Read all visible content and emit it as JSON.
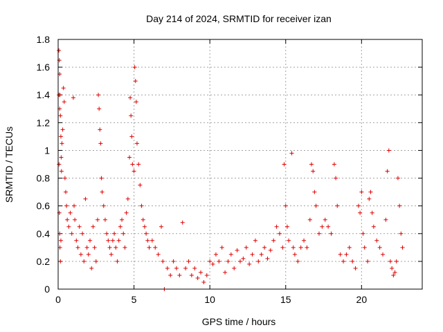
{
  "chart_data": {
    "type": "scatter",
    "title": "Day 214 of 2024, SRMTID for receiver izan",
    "xlabel": "GPS time / hours",
    "ylabel": "SRMTID / TECUs",
    "xlim": [
      0,
      24
    ],
    "ylim": [
      0,
      1.8
    ],
    "xticks": [
      0,
      5,
      10,
      15,
      20
    ],
    "xtick_labels": [
      "0",
      "5",
      "10",
      "15",
      "20"
    ],
    "yticks": [
      0,
      0.2,
      0.4,
      0.6,
      0.8,
      1.0,
      1.2,
      1.4,
      1.6,
      1.8
    ],
    "ytick_labels": [
      "0",
      "0.2",
      "0.4",
      "0.6",
      "0.8",
      "1",
      "1.2",
      "1.4",
      "1.6",
      "1.8"
    ],
    "grid": true,
    "marker": "+",
    "color": "#e00000",
    "series": [
      {
        "name": "SRMTID",
        "points": [
          [
            0.05,
            1.72
          ],
          [
            0.08,
            1.65
          ],
          [
            0.1,
            1.55
          ],
          [
            0.12,
            1.4
          ],
          [
            0.15,
            1.25
          ],
          [
            0.18,
            1.1
          ],
          [
            0.2,
            0.95
          ],
          [
            0.22,
            0.85
          ],
          [
            0.05,
            1.4
          ],
          [
            0.1,
            1.3
          ],
          [
            0.06,
            0.9
          ],
          [
            0.08,
            0.55
          ],
          [
            0.1,
            0.4
          ],
          [
            0.12,
            0.3
          ],
          [
            0.15,
            0.2
          ],
          [
            0.18,
            0.35
          ],
          [
            0.25,
            1.05
          ],
          [
            0.3,
            1.15
          ],
          [
            0.35,
            1.45
          ],
          [
            0.4,
            1.35
          ],
          [
            0.45,
            0.8
          ],
          [
            0.5,
            0.7
          ],
          [
            0.55,
            0.6
          ],
          [
            0.6,
            0.5
          ],
          [
            0.7,
            0.45
          ],
          [
            0.8,
            0.55
          ],
          [
            0.9,
            0.4
          ],
          [
            1.0,
            1.38
          ],
          [
            1.05,
            0.6
          ],
          [
            1.1,
            0.5
          ],
          [
            1.2,
            0.35
          ],
          [
            1.3,
            0.3
          ],
          [
            1.4,
            0.45
          ],
          [
            1.5,
            0.25
          ],
          [
            1.6,
            0.4
          ],
          [
            1.7,
            0.2
          ],
          [
            1.8,
            0.65
          ],
          [
            1.9,
            0.3
          ],
          [
            2.0,
            0.25
          ],
          [
            2.1,
            0.35
          ],
          [
            2.2,
            0.15
          ],
          [
            2.3,
            0.45
          ],
          [
            2.4,
            0.3
          ],
          [
            2.5,
            0.2
          ],
          [
            2.6,
            0.5
          ],
          [
            2.65,
            1.4
          ],
          [
            2.7,
            1.3
          ],
          [
            2.75,
            1.15
          ],
          [
            2.8,
            1.05
          ],
          [
            2.85,
            0.8
          ],
          [
            2.9,
            0.7
          ],
          [
            3.0,
            0.6
          ],
          [
            3.1,
            0.5
          ],
          [
            3.2,
            0.4
          ],
          [
            3.3,
            0.35
          ],
          [
            3.4,
            0.3
          ],
          [
            3.5,
            0.25
          ],
          [
            3.6,
            0.35
          ],
          [
            3.7,
            0.4
          ],
          [
            3.8,
            0.3
          ],
          [
            3.9,
            0.2
          ],
          [
            4.0,
            0.35
          ],
          [
            4.1,
            0.45
          ],
          [
            4.2,
            0.5
          ],
          [
            4.3,
            0.4
          ],
          [
            4.4,
            0.3
          ],
          [
            4.5,
            0.55
          ],
          [
            4.6,
            0.65
          ],
          [
            4.7,
            0.95
          ],
          [
            4.75,
            1.38
          ],
          [
            4.8,
            1.25
          ],
          [
            4.85,
            1.1
          ],
          [
            4.9,
            0.9
          ],
          [
            5.0,
            0.85
          ],
          [
            5.05,
            1.6
          ],
          [
            5.1,
            1.5
          ],
          [
            5.15,
            1.35
          ],
          [
            5.2,
            1.05
          ],
          [
            5.3,
            0.9
          ],
          [
            5.4,
            0.75
          ],
          [
            5.5,
            0.6
          ],
          [
            5.6,
            0.5
          ],
          [
            5.7,
            0.45
          ],
          [
            5.8,
            0.4
          ],
          [
            5.9,
            0.35
          ],
          [
            6.0,
            0.3
          ],
          [
            6.2,
            0.35
          ],
          [
            6.4,
            0.3
          ],
          [
            6.6,
            0.25
          ],
          [
            6.8,
            0.45
          ],
          [
            6.9,
            0.2
          ],
          [
            7.0,
            0.0
          ],
          [
            7.2,
            0.15
          ],
          [
            7.4,
            0.1
          ],
          [
            7.6,
            0.2
          ],
          [
            7.8,
            0.15
          ],
          [
            8.0,
            0.1
          ],
          [
            8.2,
            0.48
          ],
          [
            8.4,
            0.15
          ],
          [
            8.6,
            0.2
          ],
          [
            8.8,
            0.1
          ],
          [
            9.0,
            0.15
          ],
          [
            9.2,
            0.08
          ],
          [
            9.4,
            0.12
          ],
          [
            9.6,
            0.05
          ],
          [
            9.8,
            0.1
          ],
          [
            10.0,
            0.2
          ],
          [
            10.2,
            0.18
          ],
          [
            10.4,
            0.25
          ],
          [
            10.6,
            0.2
          ],
          [
            10.8,
            0.3
          ],
          [
            11.0,
            0.12
          ],
          [
            11.2,
            0.2
          ],
          [
            11.4,
            0.25
          ],
          [
            11.6,
            0.15
          ],
          [
            11.8,
            0.28
          ],
          [
            12.0,
            0.2
          ],
          [
            12.2,
            0.22
          ],
          [
            12.4,
            0.3
          ],
          [
            12.6,
            0.18
          ],
          [
            12.8,
            0.25
          ],
          [
            13.0,
            0.35
          ],
          [
            13.2,
            0.2
          ],
          [
            13.4,
            0.25
          ],
          [
            13.6,
            0.3
          ],
          [
            13.8,
            0.22
          ],
          [
            14.0,
            0.28
          ],
          [
            14.2,
            0.35
          ],
          [
            14.4,
            0.45
          ],
          [
            14.6,
            0.4
          ],
          [
            14.8,
            0.3
          ],
          [
            14.9,
            0.9
          ],
          [
            15.0,
            0.6
          ],
          [
            15.1,
            0.45
          ],
          [
            15.2,
            0.35
          ],
          [
            15.4,
            0.98
          ],
          [
            15.5,
            0.3
          ],
          [
            15.6,
            0.25
          ],
          [
            15.8,
            0.2
          ],
          [
            16.0,
            0.3
          ],
          [
            16.2,
            0.35
          ],
          [
            16.4,
            0.3
          ],
          [
            16.6,
            0.5
          ],
          [
            16.7,
            0.9
          ],
          [
            16.8,
            0.85
          ],
          [
            16.9,
            0.7
          ],
          [
            17.0,
            0.6
          ],
          [
            17.2,
            0.4
          ],
          [
            17.4,
            0.45
          ],
          [
            17.6,
            0.5
          ],
          [
            17.8,
            0.45
          ],
          [
            18.0,
            0.4
          ],
          [
            18.2,
            0.9
          ],
          [
            18.3,
            0.8
          ],
          [
            18.4,
            0.6
          ],
          [
            18.6,
            0.25
          ],
          [
            18.8,
            0.2
          ],
          [
            19.0,
            0.25
          ],
          [
            19.2,
            0.3
          ],
          [
            19.4,
            0.2
          ],
          [
            19.6,
            0.15
          ],
          [
            19.8,
            0.6
          ],
          [
            19.9,
            0.55
          ],
          [
            20.0,
            0.7
          ],
          [
            20.1,
            0.4
          ],
          [
            20.2,
            0.3
          ],
          [
            20.4,
            0.2
          ],
          [
            20.5,
            0.65
          ],
          [
            20.6,
            0.7
          ],
          [
            20.7,
            0.55
          ],
          [
            20.8,
            0.45
          ],
          [
            21.0,
            0.35
          ],
          [
            21.2,
            0.3
          ],
          [
            21.4,
            0.25
          ],
          [
            21.6,
            0.5
          ],
          [
            21.7,
            0.85
          ],
          [
            21.8,
            1.0
          ],
          [
            21.9,
            0.2
          ],
          [
            22.0,
            0.15
          ],
          [
            22.1,
            0.1
          ],
          [
            22.2,
            0.12
          ],
          [
            22.3,
            0.2
          ],
          [
            22.4,
            0.8
          ],
          [
            22.5,
            0.6
          ],
          [
            22.6,
            0.4
          ],
          [
            22.7,
            0.3
          ]
        ]
      }
    ]
  }
}
